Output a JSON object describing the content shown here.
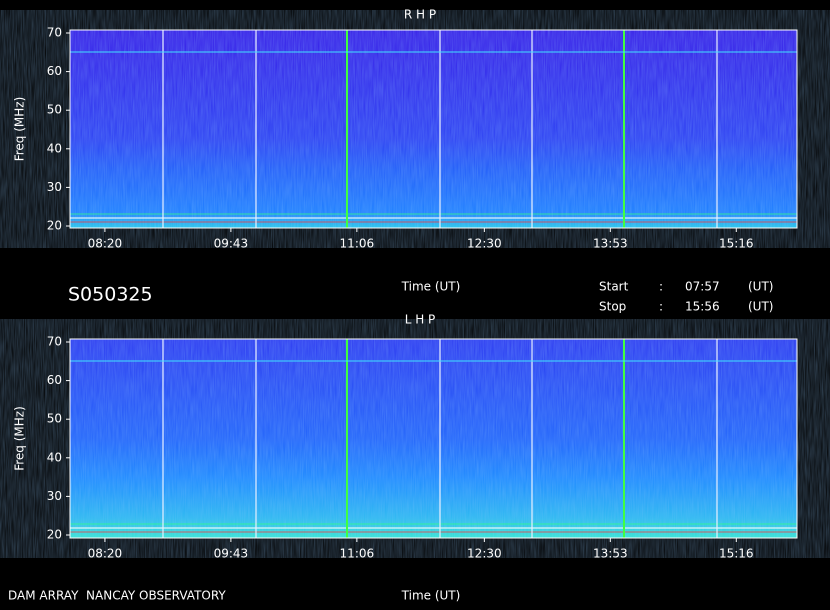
{
  "chart_data": [
    {
      "type": "heatmap",
      "title": "R H P",
      "xlabel": "Time (UT)",
      "ylabel": "Freq (MHz)",
      "xlim": [
        477,
        956
      ],
      "xticks": [
        {
          "value": 500,
          "label": "08:20"
        },
        {
          "value": 583,
          "label": "09:43"
        },
        {
          "value": 666,
          "label": "11:06"
        },
        {
          "value": 750,
          "label": "12:30"
        },
        {
          "value": 833,
          "label": "13:53"
        },
        {
          "value": 916,
          "label": "15:16"
        }
      ],
      "ylim": [
        20,
        70
      ],
      "yticks": [
        20,
        30,
        40,
        50,
        60,
        70
      ]
    },
    {
      "type": "heatmap",
      "title": "L H P",
      "xlabel": "Time (UT)",
      "ylabel": "Freq (MHz)",
      "xlim": [
        477,
        956
      ],
      "xticks": [
        {
          "value": 500,
          "label": "08:20"
        },
        {
          "value": 583,
          "label": "09:43"
        },
        {
          "value": 666,
          "label": "11:06"
        },
        {
          "value": 750,
          "label": "12:30"
        },
        {
          "value": 833,
          "label": "13:53"
        },
        {
          "value": 916,
          "label": "15:16"
        }
      ],
      "ylim": [
        20,
        70
      ],
      "yticks": [
        20,
        30,
        40,
        50,
        60,
        70
      ]
    }
  ],
  "id": "S050325",
  "start": {
    "label": "Start",
    "separator": ":",
    "value": "07:57",
    "unit": "(UT)"
  },
  "stop": {
    "label": "Stop",
    "separator": ":",
    "value": "15:56",
    "unit": "(UT)"
  },
  "footer": "DAM ARRAY  NANCAY OBSERVATORY"
}
